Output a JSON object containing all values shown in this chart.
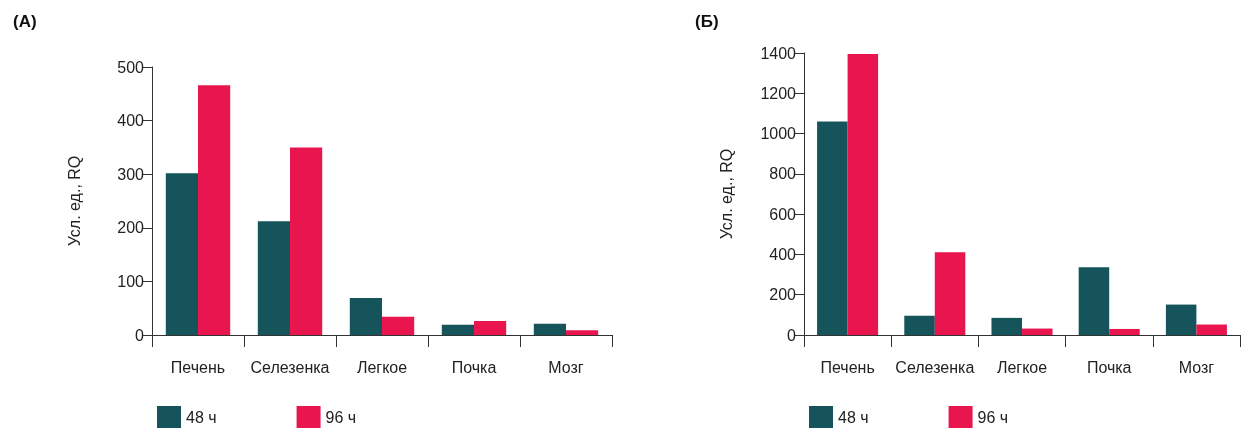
{
  "chart_data": [
    {
      "type": "bar",
      "title": "(А)",
      "ylabel": "Усл. ед., RQ",
      "categories": [
        "Печень",
        "Селезенка",
        "Легкое",
        "Почка",
        "Мозг"
      ],
      "series": [
        {
          "name": "48 ч",
          "color": "#14545a",
          "values": [
            302,
            212,
            69,
            19,
            21
          ]
        },
        {
          "name": "96 ч",
          "color": "#e8154f",
          "values": [
            466,
            350,
            34,
            26,
            9
          ]
        }
      ],
      "ylim": [
        0,
        500
      ],
      "yticks": [
        0,
        100,
        200,
        300,
        400,
        500
      ],
      "grid": false,
      "legend": "bottom left"
    },
    {
      "type": "bar",
      "title": "(Б)",
      "ylabel": "Усл. ед., RQ",
      "categories": [
        "Печень",
        "Селезенка",
        "Легкое",
        "Почка",
        "Мозг"
      ],
      "series": [
        {
          "name": "48 ч",
          "color": "#14545a",
          "values": [
            1060,
            96,
            85,
            336,
            151
          ]
        },
        {
          "name": "96 ч",
          "color": "#e8154f",
          "values": [
            1395,
            411,
            32,
            30,
            52
          ]
        }
      ],
      "ylim": [
        0,
        1400
      ],
      "yticks": [
        0,
        200,
        400,
        600,
        800,
        1000,
        1200,
        1400
      ],
      "grid": false,
      "legend": "bottom left"
    }
  ]
}
